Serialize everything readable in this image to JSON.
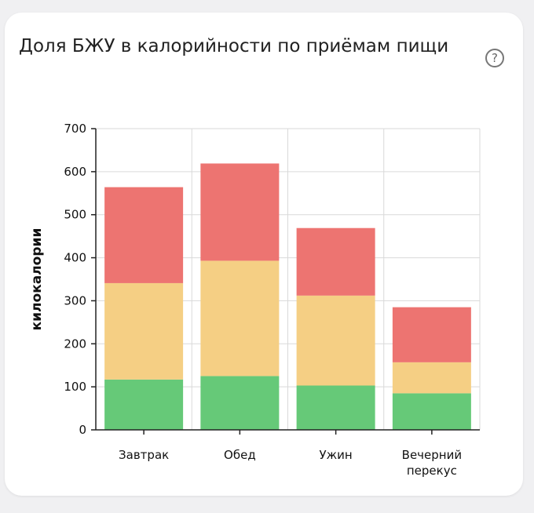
{
  "card": {
    "title": "Доля БЖУ в калорийности по приёмам пищи",
    "help_icon": "question-circle-icon",
    "help_glyph": "?"
  },
  "chart_data": {
    "type": "bar",
    "stacked": true,
    "categories": [
      "Завтрак",
      "Обед",
      "Ужин",
      "Вечерний перекус"
    ],
    "series": [
      {
        "color": "#66c978",
        "values": [
          117,
          125,
          103,
          85
        ]
      },
      {
        "color": "#f5cf84",
        "values": [
          224,
          268,
          209,
          72
        ]
      },
      {
        "color": "#ed7471",
        "values": [
          223,
          226,
          157,
          128
        ]
      }
    ],
    "ylabel": "килокалории",
    "xlabel": "",
    "ylim": [
      0,
      700
    ],
    "yticks": [
      0,
      100,
      200,
      300,
      400,
      500,
      600,
      700
    ],
    "grid": true
  }
}
